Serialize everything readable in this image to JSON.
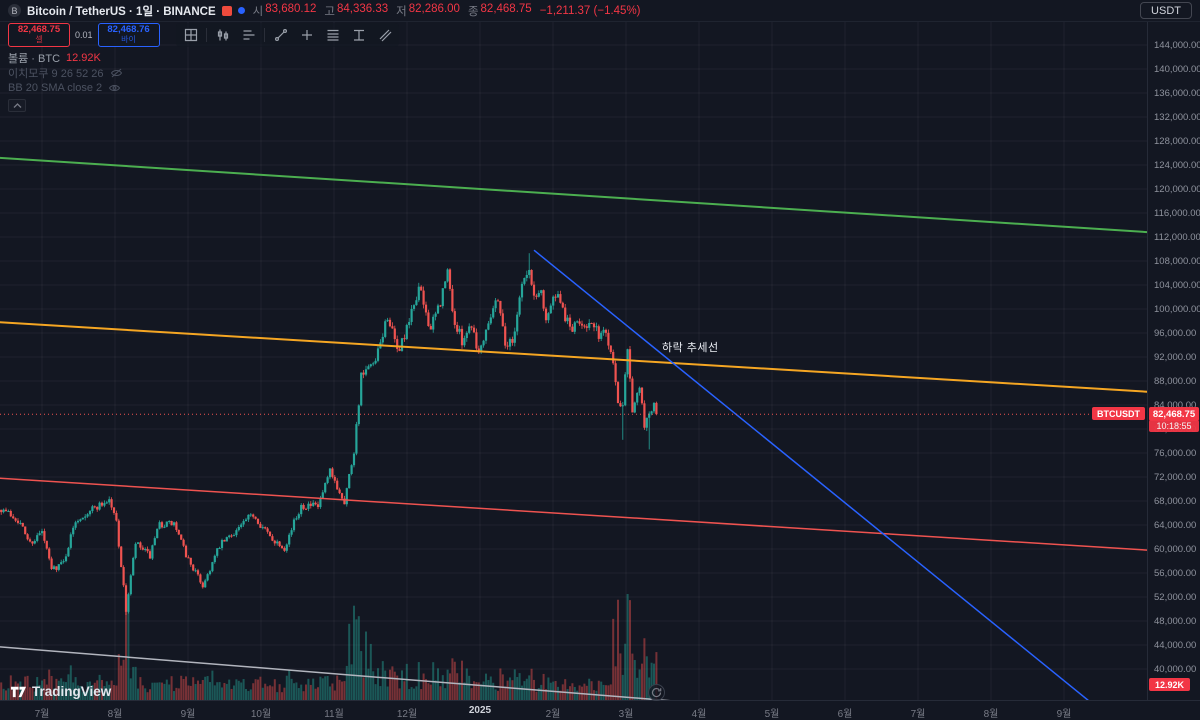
{
  "header": {
    "symbol_title": "Bitcoin / TetherUS · 1일 · BINANCE",
    "ohlc": [
      {
        "label": "시",
        "value": "83,680.12"
      },
      {
        "label": "고",
        "value": "84,336.33"
      },
      {
        "label": "저",
        "value": "82,286.00"
      },
      {
        "label": "종",
        "value": "82,468.75"
      }
    ],
    "change": "−1,211.37 (−1.45%)",
    "currency_button": "USDT"
  },
  "order_panel": {
    "sell_price": "82,468.75",
    "sell_label": "셀",
    "spread": "0.01",
    "buy_price": "82,468.76",
    "buy_label": "바이"
  },
  "legend": {
    "volume_label": "볼륨 · BTC",
    "volume_value": "12.92K",
    "ichimoku_label": "이치모쿠 9 26 52 26",
    "bb_label": "BB 20 SMA close 2"
  },
  "axis_badges": {
    "symbol": "BTCUSDT",
    "price": "82,468.75",
    "countdown": "10:18:55",
    "volume": "12.92K"
  },
  "annotation": "하락 추세선",
  "logo_text": "TradingView",
  "chart_data": {
    "type": "candlestick",
    "symbol": "BTCUSDT",
    "exchange": "BINANCE",
    "interval": "1일",
    "last_price": 82468.75,
    "price_axis": {
      "min": 40000,
      "max": 144000,
      "tick_step": 4000
    },
    "time_axis_labels": [
      "7월",
      "8월",
      "9월",
      "10월",
      "11월",
      "12월",
      "2025",
      "2월",
      "3월",
      "4월",
      "5월",
      "6월",
      "7월",
      "8월",
      "9월"
    ],
    "colors": {
      "up": "#26a69a",
      "down": "#ef5350",
      "badge": "#f23645"
    },
    "waypoints": [
      [
        -17,
        66800
      ],
      [
        -10,
        64900
      ],
      [
        -5,
        61000
      ],
      [
        0,
        62800
      ],
      [
        4,
        56600
      ],
      [
        9,
        57800
      ],
      [
        14,
        64800
      ],
      [
        20,
        66500
      ],
      [
        28,
        68200
      ],
      [
        31,
        64600
      ],
      [
        35,
        49800
      ],
      [
        39,
        60900
      ],
      [
        45,
        58800
      ],
      [
        49,
        64100
      ],
      [
        55,
        64200
      ],
      [
        60,
        59000
      ],
      [
        67,
        53900
      ],
      [
        74,
        60500
      ],
      [
        81,
        63200
      ],
      [
        88,
        65800
      ],
      [
        95,
        62000
      ],
      [
        101,
        60300
      ],
      [
        108,
        67400
      ],
      [
        115,
        67000
      ],
      [
        120,
        72700
      ],
      [
        126,
        68000
      ],
      [
        130,
        76500
      ],
      [
        133,
        88700
      ],
      [
        139,
        91000
      ],
      [
        144,
        99000
      ],
      [
        148,
        92800
      ],
      [
        152,
        96400
      ],
      [
        157,
        103600
      ],
      [
        162,
        96600
      ],
      [
        166,
        101200
      ],
      [
        169,
        106100
      ],
      [
        172,
        97400
      ],
      [
        175,
        94900
      ],
      [
        179,
        97700
      ],
      [
        182,
        92600
      ],
      [
        186,
        98300
      ],
      [
        190,
        102100
      ],
      [
        193,
        94300
      ],
      [
        196,
        94500
      ],
      [
        200,
        104500
      ],
      [
        203,
        106100
      ],
      [
        205,
        102100
      ],
      [
        208,
        103000
      ],
      [
        210,
        98600
      ],
      [
        214,
        102400
      ],
      [
        218,
        98700
      ],
      [
        221,
        96500
      ],
      [
        224,
        97900
      ],
      [
        228,
        97500
      ],
      [
        232,
        95800
      ],
      [
        235,
        96200
      ],
      [
        238,
        91500
      ],
      [
        240,
        84300
      ],
      [
        242,
        84700
      ],
      [
        244,
        94200
      ],
      [
        246,
        83200
      ],
      [
        249,
        86700
      ],
      [
        251,
        80700
      ],
      [
        253,
        82900
      ],
      [
        255,
        83700
      ],
      [
        256,
        82468.75
      ]
    ],
    "wick_overrides": [
      {
        "d": 35,
        "low": 49000
      },
      {
        "d": 203,
        "high": 109300
      },
      {
        "d": 242,
        "low": 78200
      },
      {
        "d": 253,
        "low": 76600
      }
    ],
    "volume_spikes": [
      [
        35,
        36,
        3.2
      ],
      [
        128,
        137,
        3.5
      ],
      [
        138,
        152,
        1.8
      ],
      [
        153,
        178,
        1.5
      ],
      [
        190,
        206,
        1.2
      ],
      [
        238,
        247,
        3.2
      ],
      [
        248,
        256,
        2.0
      ]
    ],
    "trendlines": [
      {
        "name": "upper-resistance-trendline",
        "color": "#4caf50",
        "width": 2,
        "points": [
          [
            -18,
            125200
          ],
          [
            461,
            112800
          ]
        ]
      },
      {
        "name": "mid-resistance-trendline",
        "color": "#f5a623",
        "width": 2,
        "points": [
          [
            -18,
            97800
          ],
          [
            461,
            86200
          ]
        ]
      },
      {
        "name": "lower-support-trendline",
        "color": "#ef5350",
        "width": 1.5,
        "points": [
          [
            -18,
            71800
          ],
          [
            461,
            59800
          ]
        ]
      },
      {
        "name": "downtrend-line",
        "color": "#2962ff",
        "width": 1.5,
        "points": [
          [
            205,
            109800
          ],
          [
            446,
            31500
          ]
        ]
      },
      {
        "name": "base-trendline",
        "color": "#b2b5be",
        "width": 1.5,
        "points": [
          [
            -18,
            43700
          ],
          [
            399,
            30300
          ]
        ]
      }
    ]
  }
}
